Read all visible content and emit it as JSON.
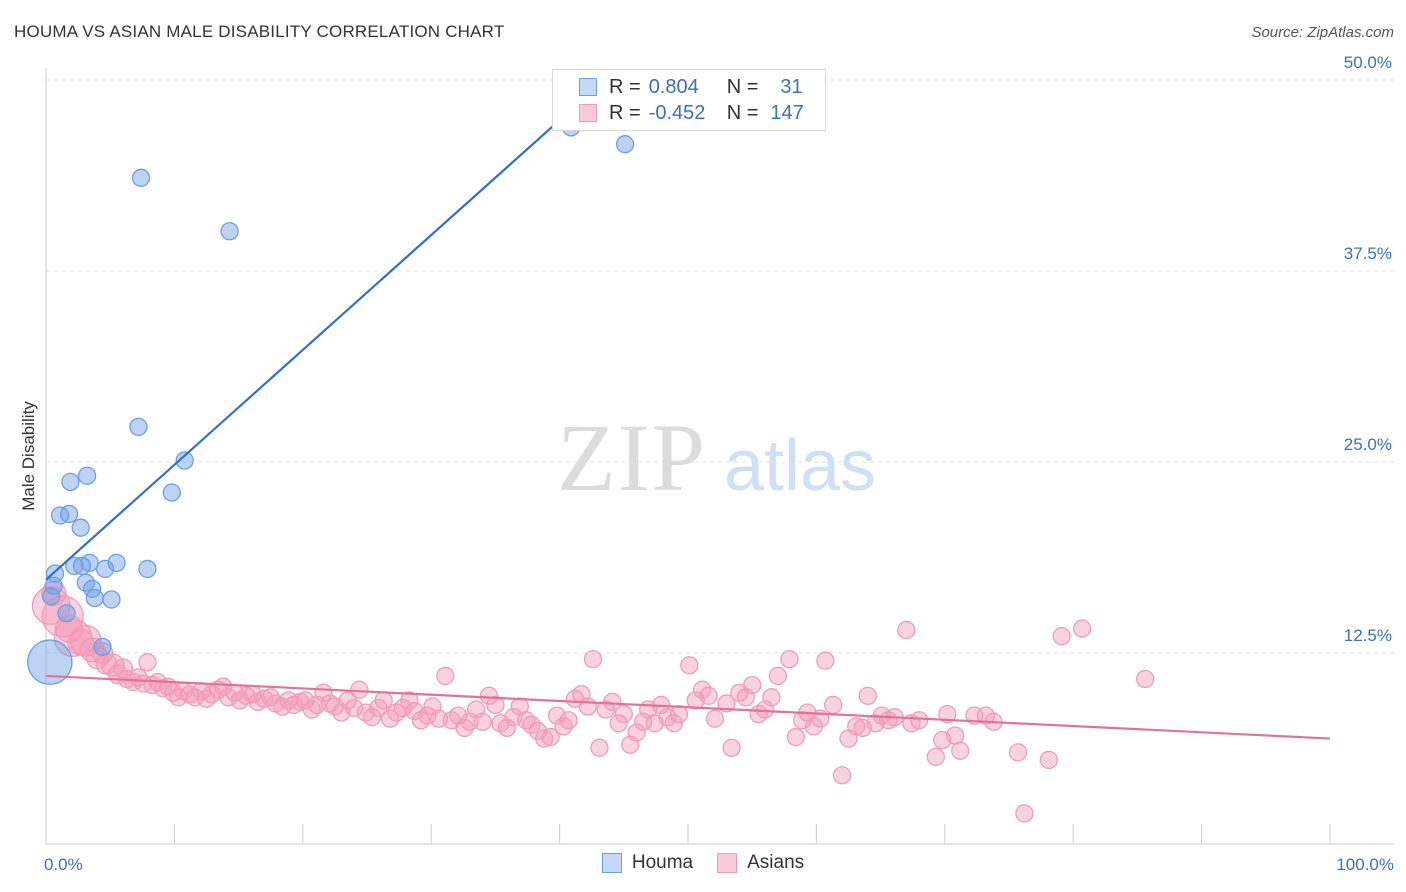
{
  "title": "HOUMA VS ASIAN MALE DISABILITY CORRELATION CHART",
  "source": "Source: ZipAtlas.com",
  "watermark": {
    "zip": "ZIP",
    "atlas": "atlas"
  },
  "legend": {
    "r_label": "R =",
    "n_label": "N =",
    "rows": [
      {
        "name": "Houma",
        "r": "0.804",
        "n": "31"
      },
      {
        "name": "Asians",
        "r": "-0.452",
        "n": "147"
      }
    ]
  },
  "colors": {
    "houma": "#6d9ee6",
    "houma_line": "#2f6fcc",
    "asians": "#f29bb7",
    "asians_line": "#e5709b",
    "tick_label": "#3b6fc4"
  },
  "chart_data": {
    "type": "scatter",
    "title": "HOUMA VS ASIAN MALE DISABILITY CORRELATION CHART",
    "xlabel": "",
    "ylabel": "Male Disability",
    "xlim": [
      0,
      100
    ],
    "ylim": [
      0,
      50
    ],
    "x_tick_labels": [
      "0.0%",
      "100.0%"
    ],
    "y_ticks": [
      12.5,
      25.0,
      37.5,
      50.0
    ],
    "y_tick_labels": [
      "12.5%",
      "25.0%",
      "37.5%",
      "50.0%"
    ],
    "grid": true,
    "legend_position": "bottom",
    "series": [
      {
        "name": "Houma",
        "r": 0.804,
        "n": 31,
        "trend": {
          "x": [
            0,
            43.5
          ],
          "y": [
            17.3,
            50.0
          ]
        },
        "points": [
          [
            0.3,
            11.9,
            2.6
          ],
          [
            0.4,
            16.2,
            1
          ],
          [
            0.6,
            16.9,
            1
          ],
          [
            0.7,
            17.7,
            1
          ],
          [
            1.1,
            21.5,
            1
          ],
          [
            1.6,
            15.1,
            1
          ],
          [
            1.8,
            21.6,
            1
          ],
          [
            1.9,
            23.7,
            1
          ],
          [
            2.2,
            18.2,
            1
          ],
          [
            2.7,
            20.7,
            1
          ],
          [
            2.8,
            18.2,
            1
          ],
          [
            3.1,
            17.1,
            1
          ],
          [
            3.2,
            24.1,
            1
          ],
          [
            3.4,
            18.4,
            1
          ],
          [
            3.6,
            16.7,
            1
          ],
          [
            3.8,
            16.1,
            1
          ],
          [
            4.4,
            12.9,
            1
          ],
          [
            4.6,
            18.0,
            1
          ],
          [
            5.1,
            16.0,
            1
          ],
          [
            5.5,
            18.4,
            1
          ],
          [
            7.2,
            27.3,
            1
          ],
          [
            7.4,
            43.6,
            1
          ],
          [
            7.9,
            18.0,
            1
          ],
          [
            9.8,
            23.0,
            1
          ],
          [
            10.8,
            25.1,
            1
          ],
          [
            14.3,
            40.1,
            1
          ],
          [
            40.9,
            46.9,
            1
          ],
          [
            45.1,
            45.8,
            1
          ]
        ]
      },
      {
        "name": "Asians",
        "r": -0.452,
        "n": 147,
        "trend": {
          "x": [
            0,
            100
          ],
          "y": [
            11.0,
            6.9
          ]
        },
        "points": [
          [
            0.4,
            15.6,
            2.2
          ],
          [
            0.6,
            16.4,
            1.4
          ],
          [
            1.3,
            14.9,
            2.4
          ],
          [
            1.8,
            14.1,
            1.6
          ],
          [
            2.1,
            13.5,
            2.2
          ],
          [
            2.7,
            13.2,
            1.5
          ],
          [
            3.1,
            13.3,
            1.8
          ],
          [
            3.6,
            12.7,
            1.4
          ],
          [
            4.0,
            12.2,
            1.3
          ],
          [
            4.4,
            12.5,
            1.2
          ],
          [
            4.7,
            11.8,
            1.2
          ],
          [
            5.2,
            11.7,
            1.3
          ],
          [
            5.6,
            11.1,
            1.1
          ],
          [
            6.0,
            11.5,
            1.1
          ],
          [
            6.3,
            10.8,
            1
          ],
          [
            6.8,
            10.6,
            1
          ],
          [
            7.2,
            10.9,
            1
          ],
          [
            7.6,
            10.5,
            1
          ],
          [
            7.9,
            11.9,
            1
          ],
          [
            8.3,
            10.4,
            1
          ],
          [
            8.7,
            10.6,
            1
          ],
          [
            9.1,
            10.2,
            1
          ],
          [
            9.5,
            10.3,
            1
          ],
          [
            9.9,
            9.9,
            1
          ],
          [
            10.3,
            9.6,
            1
          ],
          [
            10.7,
            10.0,
            1
          ],
          [
            11.2,
            9.8,
            1
          ],
          [
            11.6,
            9.6,
            1
          ],
          [
            12.1,
            10.0,
            1
          ],
          [
            12.5,
            9.5,
            1
          ],
          [
            12.9,
            9.8,
            1
          ],
          [
            13.4,
            10.1,
            1
          ],
          [
            13.8,
            10.3,
            1
          ],
          [
            14.2,
            9.6,
            1
          ],
          [
            14.7,
            9.9,
            1
          ],
          [
            15.1,
            9.4,
            1
          ],
          [
            15.6,
            9.7,
            1
          ],
          [
            16.1,
            9.8,
            1
          ],
          [
            16.5,
            9.3,
            1
          ],
          [
            17.0,
            9.5,
            1
          ],
          [
            17.5,
            9.6,
            1
          ],
          [
            17.9,
            9.2,
            1
          ],
          [
            18.4,
            9.0,
            1
          ],
          [
            18.9,
            9.4,
            1
          ],
          [
            19.3,
            9.1,
            1
          ],
          [
            19.8,
            9.3,
            1
          ],
          [
            20.2,
            9.4,
            1
          ],
          [
            20.7,
            8.8,
            1
          ],
          [
            21.1,
            9.1,
            1
          ],
          [
            21.6,
            9.9,
            1
          ],
          [
            22.1,
            9.2,
            1
          ],
          [
            22.5,
            9.0,
            1
          ],
          [
            23.0,
            8.6,
            1
          ],
          [
            23.5,
            9.4,
            1
          ],
          [
            24.0,
            8.9,
            1
          ],
          [
            24.4,
            10.1,
            1
          ],
          [
            24.9,
            8.6,
            1
          ],
          [
            25.4,
            8.3,
            1
          ],
          [
            25.9,
            8.9,
            1
          ],
          [
            26.3,
            9.4,
            1
          ],
          [
            26.8,
            8.2,
            1
          ],
          [
            27.3,
            8.6,
            1
          ],
          [
            27.8,
            8.9,
            1
          ],
          [
            28.3,
            9.4,
            1
          ],
          [
            28.7,
            8.7,
            1
          ],
          [
            29.2,
            8.1,
            1
          ],
          [
            29.7,
            8.4,
            1
          ],
          [
            30.1,
            9.0,
            1
          ],
          [
            30.6,
            8.2,
            1
          ],
          [
            31.1,
            11.0,
            1
          ],
          [
            31.6,
            8.1,
            1
          ],
          [
            32.1,
            8.4,
            1
          ],
          [
            32.6,
            7.6,
            1
          ],
          [
            33.0,
            8.0,
            1
          ],
          [
            33.5,
            8.8,
            1
          ],
          [
            34.0,
            8.0,
            1
          ],
          [
            34.5,
            9.7,
            1
          ],
          [
            35.0,
            9.1,
            1
          ],
          [
            35.4,
            7.9,
            1
          ],
          [
            35.9,
            7.6,
            1
          ],
          [
            36.4,
            8.3,
            1
          ],
          [
            36.9,
            9.0,
            1
          ],
          [
            37.4,
            8.1,
            1
          ],
          [
            37.8,
            7.8,
            1
          ],
          [
            38.3,
            7.4,
            1
          ],
          [
            38.8,
            6.9,
            1
          ],
          [
            39.3,
            7.0,
            1
          ],
          [
            39.8,
            8.4,
            1
          ],
          [
            40.3,
            7.7,
            1
          ],
          [
            40.7,
            8.1,
            1
          ],
          [
            41.2,
            9.5,
            1
          ],
          [
            41.7,
            9.8,
            1
          ],
          [
            42.2,
            9.0,
            1
          ],
          [
            42.6,
            12.1,
            1
          ],
          [
            43.1,
            6.3,
            1
          ],
          [
            43.6,
            8.8,
            1
          ],
          [
            44.1,
            9.3,
            1
          ],
          [
            44.6,
            7.9,
            1
          ],
          [
            45.0,
            8.5,
            1
          ],
          [
            45.5,
            6.5,
            1
          ],
          [
            46.0,
            7.3,
            1
          ],
          [
            46.5,
            8.0,
            1
          ],
          [
            46.9,
            8.8,
            1
          ],
          [
            47.4,
            7.9,
            1
          ],
          [
            47.9,
            9.1,
            1
          ],
          [
            48.4,
            8.3,
            1
          ],
          [
            48.9,
            7.9,
            1
          ],
          [
            49.3,
            8.5,
            1
          ],
          [
            50.1,
            11.7,
            1
          ],
          [
            50.6,
            9.4,
            1
          ],
          [
            51.1,
            10.1,
            1
          ],
          [
            51.6,
            9.7,
            1
          ],
          [
            52.1,
            8.2,
            1
          ],
          [
            53.0,
            9.2,
            1
          ],
          [
            53.4,
            6.3,
            1
          ],
          [
            54.0,
            9.9,
            1
          ],
          [
            54.5,
            9.6,
            1
          ],
          [
            55.0,
            10.4,
            1
          ],
          [
            55.5,
            8.5,
            1
          ],
          [
            56.0,
            8.8,
            1
          ],
          [
            56.5,
            9.6,
            1
          ],
          [
            57.0,
            11.0,
            1
          ],
          [
            57.9,
            12.1,
            1
          ],
          [
            58.4,
            7.0,
            1
          ],
          [
            58.9,
            8.1,
            1
          ],
          [
            59.3,
            8.6,
            1
          ],
          [
            59.8,
            7.7,
            1
          ],
          [
            60.3,
            8.2,
            1
          ],
          [
            60.7,
            12.0,
            1
          ],
          [
            61.3,
            9.1,
            1
          ],
          [
            62.0,
            4.5,
            1
          ],
          [
            62.5,
            6.9,
            1
          ],
          [
            63.1,
            7.7,
            1
          ],
          [
            63.6,
            7.6,
            1
          ],
          [
            64.0,
            9.7,
            1
          ],
          [
            64.6,
            7.9,
            1
          ],
          [
            65.1,
            8.4,
            1
          ],
          [
            65.6,
            8.1,
            1
          ],
          [
            66.1,
            8.3,
            1
          ],
          [
            67.0,
            14.0,
            1
          ],
          [
            67.4,
            7.9,
            1
          ],
          [
            68.0,
            8.1,
            1
          ],
          [
            69.3,
            5.7,
            1
          ],
          [
            69.8,
            6.8,
            1
          ],
          [
            70.2,
            8.5,
            1
          ],
          [
            70.8,
            7.1,
            1
          ],
          [
            71.2,
            6.1,
            1
          ],
          [
            72.3,
            8.4,
            1
          ],
          [
            73.2,
            8.4,
            1
          ],
          [
            73.8,
            8.0,
            1
          ],
          [
            75.7,
            6.0,
            1
          ],
          [
            76.2,
            2.0,
            1
          ],
          [
            78.1,
            5.5,
            1
          ],
          [
            79.1,
            13.6,
            1
          ],
          [
            80.7,
            14.1,
            1
          ],
          [
            85.6,
            10.8,
            1
          ]
        ]
      }
    ]
  }
}
